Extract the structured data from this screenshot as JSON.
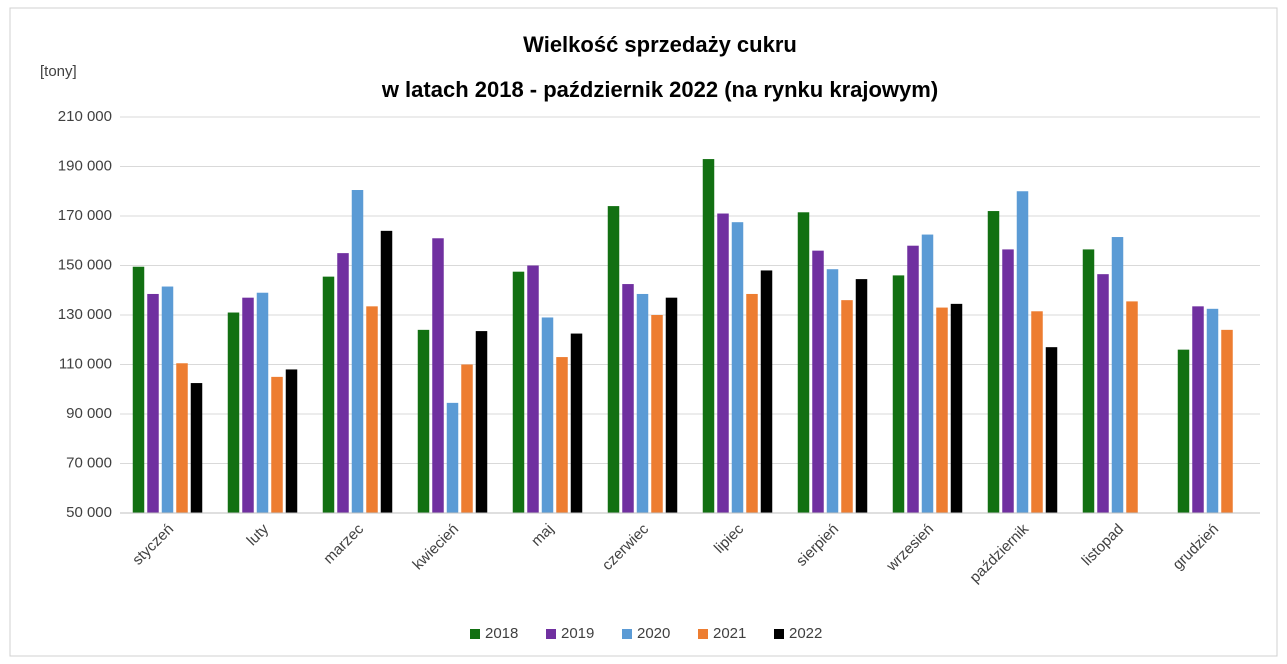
{
  "chart_data": {
    "type": "bar",
    "title": [
      "Wielkość sprzedaży cukru",
      "w latach 2018 - październik 2022 (na rynku krajowym)"
    ],
    "y_label": "[tony]",
    "categories": [
      "styczeń",
      "luty",
      "marzec",
      "kwiecień",
      "maj",
      "czerwiec",
      "lipiec",
      "sierpień",
      "wrzesień",
      "październik",
      "listopad",
      "grudzień"
    ],
    "series": [
      {
        "name": "2018",
        "color": "#127012",
        "values": [
          149500,
          131000,
          145500,
          124000,
          147500,
          174000,
          193000,
          171500,
          146000,
          172000,
          156500,
          116000
        ]
      },
      {
        "name": "2019",
        "color": "#7030a0",
        "values": [
          138500,
          137000,
          155000,
          161000,
          150000,
          142500,
          171000,
          156000,
          158000,
          156500,
          146500,
          133500
        ]
      },
      {
        "name": "2020",
        "color": "#5b9bd5",
        "values": [
          141500,
          139000,
          180500,
          94500,
          129000,
          138500,
          167500,
          148500,
          162500,
          180000,
          161500,
          132500
        ]
      },
      {
        "name": "2021",
        "color": "#ed7d31",
        "values": [
          110500,
          105000,
          133500,
          110000,
          113000,
          130000,
          138500,
          136000,
          133000,
          131500,
          135500,
          124000
        ]
      },
      {
        "name": "2022",
        "color": "#000000",
        "values": [
          102500,
          108000,
          164000,
          123500,
          122500,
          137000,
          148000,
          144500,
          134500,
          117000,
          null,
          null
        ]
      }
    ],
    "ylim": [
      50000,
      210000
    ],
    "yticks": [
      {
        "value": 50000,
        "label": "50 000"
      },
      {
        "value": 70000,
        "label": "70 000"
      },
      {
        "value": 90000,
        "label": "90 000"
      },
      {
        "value": 110000,
        "label": "110 000"
      },
      {
        "value": 130000,
        "label": "130 000"
      },
      {
        "value": 150000,
        "label": "150 000"
      },
      {
        "value": 170000,
        "label": "170 000"
      },
      {
        "value": 190000,
        "label": "190 000"
      },
      {
        "value": 210000,
        "label": "210 000"
      }
    ],
    "grid": true,
    "legend": "bottom"
  }
}
